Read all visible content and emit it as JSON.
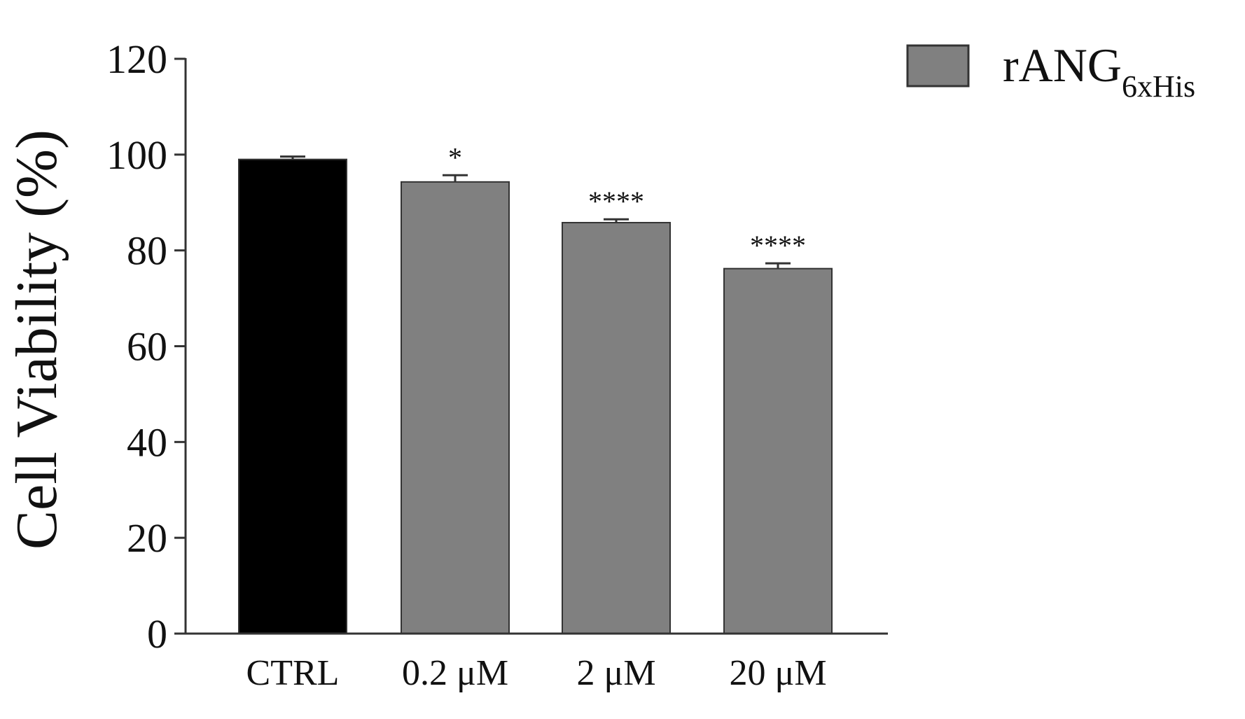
{
  "chart_data": {
    "type": "bar",
    "categories": [
      "CTRL",
      "0.2 μM",
      "2 μM",
      "20 μM"
    ],
    "values": [
      99,
      94.3,
      85.8,
      76.2
    ],
    "errors": [
      0.6,
      1.4,
      0.7,
      1.1
    ],
    "significance": [
      "",
      "*",
      "****",
      "****"
    ],
    "bar_colors": [
      "#000000",
      "#808080",
      "#808080",
      "#808080"
    ],
    "ylabel": "Cell Viability (%)",
    "xlabel": "",
    "ylim": [
      0,
      120
    ],
    "yticks": [
      0,
      20,
      40,
      60,
      80,
      100,
      120
    ],
    "grid": false,
    "legend": {
      "placement": "top-right",
      "entries": [
        {
          "label_main": "rANG",
          "label_sub": "6xHis",
          "color": "#808080"
        }
      ]
    }
  }
}
